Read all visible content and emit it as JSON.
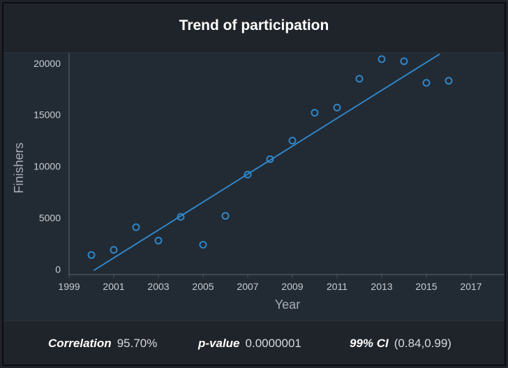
{
  "chart_data": {
    "type": "scatter",
    "title": "Trend of participation",
    "xlabel": "Year",
    "ylabel": "Finishers",
    "xlim": [
      1999,
      2018.5
    ],
    "ylim": [
      -500,
      21000
    ],
    "x_ticks": [
      1999,
      2001,
      2003,
      2005,
      2007,
      2009,
      2011,
      2013,
      2015,
      2017
    ],
    "y_ticks": [
      0,
      5000,
      10000,
      15000,
      20000
    ],
    "points": [
      {
        "x": 2000,
        "y": 1400
      },
      {
        "x": 2001,
        "y": 1900
      },
      {
        "x": 2002,
        "y": 4100
      },
      {
        "x": 2003,
        "y": 2800
      },
      {
        "x": 2004,
        "y": 5100
      },
      {
        "x": 2005,
        "y": 2400
      },
      {
        "x": 2006,
        "y": 5200
      },
      {
        "x": 2007,
        "y": 9200
      },
      {
        "x": 2008,
        "y": 10700
      },
      {
        "x": 2009,
        "y": 12500
      },
      {
        "x": 2010,
        "y": 15200
      },
      {
        "x": 2011,
        "y": 15700
      },
      {
        "x": 2012,
        "y": 18500
      },
      {
        "x": 2013,
        "y": 20400
      },
      {
        "x": 2014,
        "y": 20200
      },
      {
        "x": 2015,
        "y": 18100
      },
      {
        "x": 2016,
        "y": 18300
      }
    ],
    "trendline": {
      "x": [
        2000.1,
        2015.6
      ],
      "y": [
        -100,
        20900
      ]
    },
    "grid": false,
    "colors": {
      "points": "#2f86c8",
      "line": "#2f86c8",
      "text": "#c9cdd3"
    }
  },
  "stats": [
    {
      "label": "Correlation",
      "value": "95.70%"
    },
    {
      "label": "p-value",
      "value": "0.0000001"
    },
    {
      "label": "99% CI",
      "value": "(0.84,0.99)"
    }
  ]
}
